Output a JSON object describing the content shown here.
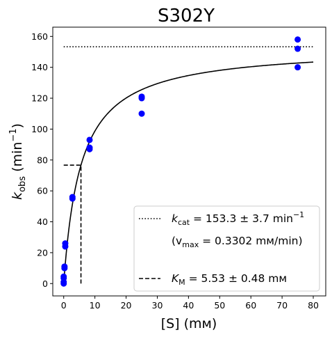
{
  "chart_data": {
    "type": "scatter",
    "title": "S302Y",
    "xlabel": "[S] (mм)",
    "ylabel": {
      "main": "k",
      "sub": "obs",
      "suffix_open": " (min",
      "sup": "−1",
      "suffix_close": ")"
    },
    "xlim": [
      -3.5,
      84
    ],
    "ylim": [
      -8,
      166
    ],
    "xticks": [
      0,
      10,
      20,
      30,
      40,
      50,
      60,
      70,
      80
    ],
    "yticks": [
      0,
      20,
      40,
      60,
      80,
      100,
      120,
      140,
      160
    ],
    "grid": false,
    "legend_position": "lower-right",
    "colors": {
      "points": "#0000ff",
      "fit": "#000000"
    },
    "series": [
      {
        "kind": "points",
        "x": [
          0,
          0,
          0,
          0,
          0.25,
          0.25,
          0.5,
          0.5,
          2.8,
          2.8,
          8.3,
          8.3,
          8.3,
          25,
          25,
          25,
          75,
          75,
          75
        ],
        "y": [
          0,
          1,
          3.5,
          4.5,
          10,
          11,
          24,
          26,
          55,
          56,
          93,
          87,
          88,
          121,
          120,
          110,
          158,
          152,
          140
        ]
      },
      {
        "kind": "michaelis-menten-fit",
        "kcat": 153.3,
        "km": 5.53,
        "x_range": [
          0,
          80
        ]
      },
      {
        "kind": "kcat-line",
        "y": 153.3,
        "x_range": [
          0,
          80
        ]
      },
      {
        "kind": "km-marker",
        "x": 5.53,
        "y": 76.65,
        "x_start": 0
      }
    ],
    "legend": [
      {
        "style": "dotted",
        "text_main": "k",
        "text_sub": "cat",
        "text_rest": " = 153.3 ± 3.7 min",
        "text_sup": "−1"
      },
      {
        "style": "none",
        "text_open": "(v",
        "text_sub": "max",
        "text_rest": " = 0.3302 mм/min)"
      },
      {
        "style": "dashed",
        "text_main": "K",
        "text_sub": "M",
        "text_rest": " = 5.53 ± 0.48 mм"
      }
    ]
  }
}
